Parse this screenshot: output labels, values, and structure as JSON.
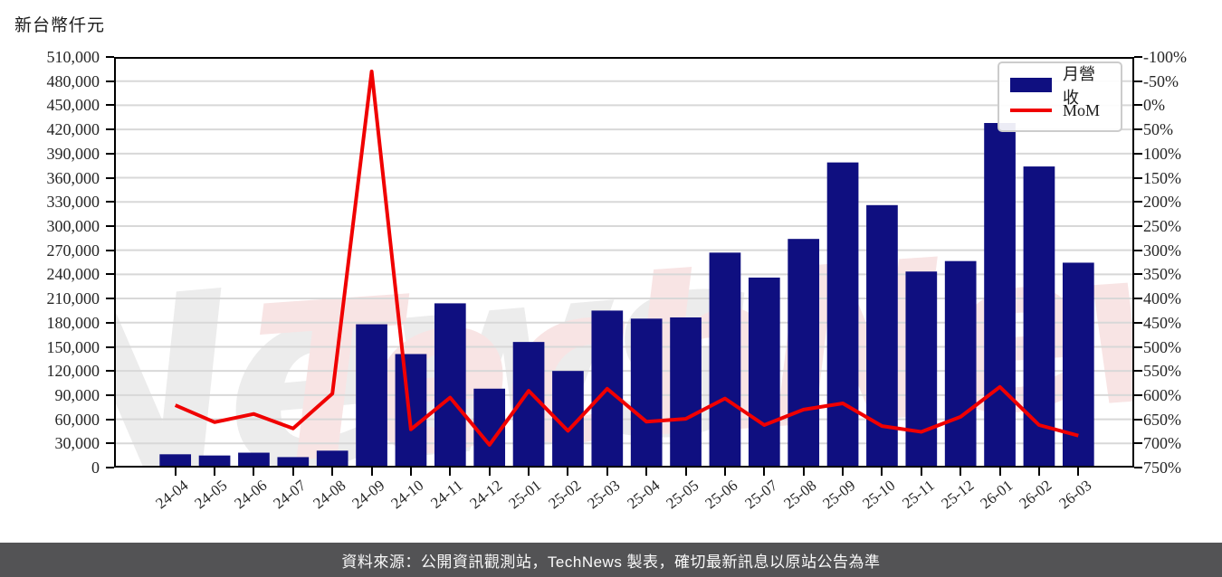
{
  "title": {
    "unit_label": "新台幣仟元"
  },
  "legend": {
    "bar_label": "月營收",
    "line_label": "MoM"
  },
  "footer": {
    "text": "資料來源：公開資訊觀測站，TechNews 製表，確切最新訊息以原站公告為準"
  },
  "watermark": {
    "text": "TechNews"
  },
  "colors": {
    "bar": "#0F0F80",
    "line": "#F00000",
    "grid": "#D8D8D8",
    "axis": "#000000",
    "watermark_pink": "#F8E4E4",
    "watermark_gray": "#ECECEC",
    "footer_bg": "#535355"
  },
  "chart_data": {
    "type": "bar",
    "title": "新台幣仟元",
    "categories": [
      "24-04",
      "24-05",
      "24-06",
      "24-07",
      "24-08",
      "24-09",
      "24-10",
      "24-11",
      "24-12",
      "25-01",
      "25-02",
      "25-03",
      "25-04",
      "25-05",
      "25-06",
      "25-07",
      "25-08",
      "25-09",
      "25-10",
      "25-11",
      "25-12",
      "26-01",
      "26-02",
      "26-03"
    ],
    "series": [
      {
        "name": "月營收",
        "type": "bar",
        "axis": "left",
        "unit": "仟元",
        "values": [
          16500,
          15000,
          18500,
          13000,
          21000,
          178000,
          141000,
          204000,
          98000,
          156000,
          120000,
          195000,
          185000,
          186500,
          267000,
          236000,
          284000,
          379000,
          326000,
          243500,
          256500,
          428000,
          374000,
          254500
        ]
      },
      {
        "name": "MoM",
        "type": "line",
        "axis": "right",
        "unit": "%",
        "values": [
          29,
          -6,
          11,
          -19,
          53,
          720,
          -21,
          45,
          -53,
          59,
          -24,
          63,
          -5,
          1,
          43,
          -12,
          20,
          33,
          -14,
          -26,
          5,
          67,
          -12,
          -34
        ]
      }
    ],
    "left_axis": {
      "min": 0,
      "max": 510000,
      "step": 30000,
      "label": "新台幣仟元"
    },
    "right_axis": {
      "min": -100,
      "max": 750,
      "step": 50,
      "unit": "%"
    },
    "grid": true,
    "legend_position": "top-right"
  }
}
